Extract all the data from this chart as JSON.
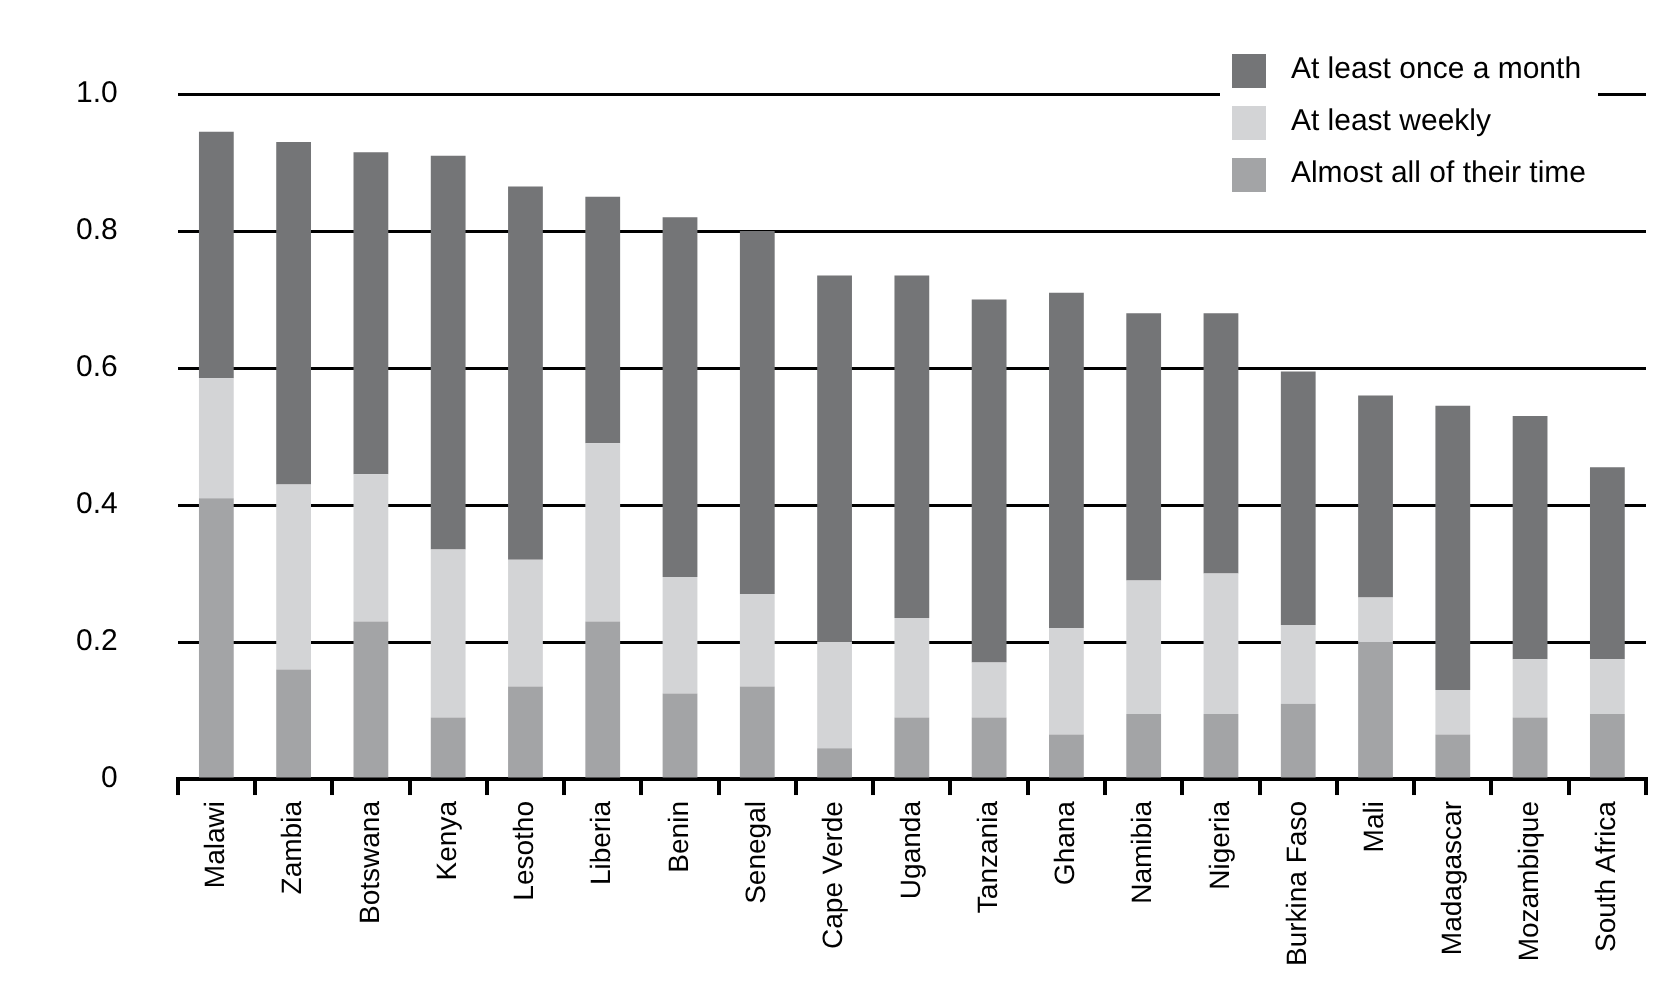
{
  "chart_data": {
    "type": "bar",
    "stacked": true,
    "legend": "top right",
    "grid": "y",
    "categories": [
      "Malawi",
      "Zambia",
      "Botswana",
      "Kenya",
      "Lesotho",
      "Liberia",
      "Benin",
      "Senegal",
      "Cape Verde",
      "Uganda",
      "Tanzania",
      "Ghana",
      "Namibia",
      "Nigeria",
      "Burkina Faso",
      "Mali",
      "Madagascar",
      "Mozambique",
      "South Africa"
    ],
    "series": [
      {
        "name": "Almost all of their time",
        "color": "#a3a4a6",
        "values": [
          0.41,
          0.16,
          0.23,
          0.09,
          0.135,
          0.23,
          0.125,
          0.135,
          0.045,
          0.09,
          0.09,
          0.065,
          0.095,
          0.095,
          0.11,
          0.2,
          0.065,
          0.09,
          0.095
        ]
      },
      {
        "name": "At least weekly",
        "color": "#d3d4d6",
        "values": [
          0.175,
          0.27,
          0.215,
          0.245,
          0.185,
          0.26,
          0.17,
          0.135,
          0.155,
          0.145,
          0.08,
          0.155,
          0.195,
          0.205,
          0.115,
          0.065,
          0.065,
          0.085,
          0.08
        ]
      },
      {
        "name": "At least once a month",
        "color": "#747577",
        "values": [
          0.36,
          0.5,
          0.47,
          0.575,
          0.545,
          0.36,
          0.525,
          0.53,
          0.535,
          0.5,
          0.53,
          0.49,
          0.39,
          0.38,
          0.37,
          0.295,
          0.415,
          0.355,
          0.28
        ]
      }
    ],
    "ylim": [
      0,
      1
    ],
    "yticks": [
      0,
      0.2,
      0.4,
      0.6,
      0.8,
      {
        "value": 1,
        "label": "1.0"
      }
    ]
  }
}
